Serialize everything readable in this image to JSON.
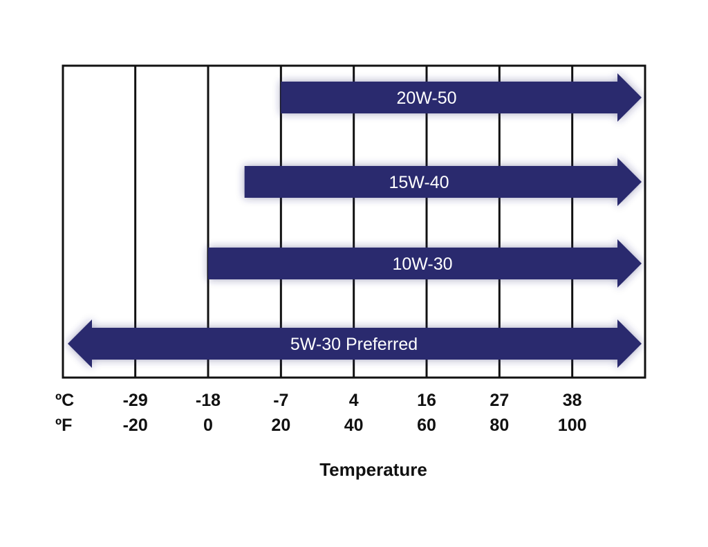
{
  "chart_data": {
    "type": "bar",
    "xlabel": "Temperature",
    "units": {
      "celsius": "ºC",
      "fahrenheit": "ºF"
    },
    "ticks": [
      {
        "c": "-29",
        "f": "-20",
        "f_value": -20
      },
      {
        "c": "-18",
        "f": "0",
        "f_value": 0
      },
      {
        "c": "-7",
        "f": "20",
        "f_value": 20
      },
      {
        "c": "4",
        "f": "40",
        "f_value": 40
      },
      {
        "c": "16",
        "f": "60",
        "f_value": 60
      },
      {
        "c": "27",
        "f": "80",
        "f_value": 80
      },
      {
        "c": "38",
        "f": "100",
        "f_value": 100
      }
    ],
    "xlim_f": [
      -40,
      120
    ],
    "arrow_end_f": 116,
    "series": [
      {
        "name": "20W-50",
        "from_f": 20,
        "to_f": 116,
        "arrow_left": false
      },
      {
        "name": "15W-40",
        "from_f": 10,
        "to_f": 116,
        "arrow_left": false
      },
      {
        "name": "10W-30",
        "from_f": 0,
        "to_f": 116,
        "arrow_left": false
      },
      {
        "name": "5W-30 Preferred",
        "from_f": -40,
        "to_f": 116,
        "arrow_left": true
      }
    ],
    "colors": {
      "bar": "#2b2a6e",
      "grid": "#111111",
      "text": "#ffffff"
    },
    "grid": true
  }
}
